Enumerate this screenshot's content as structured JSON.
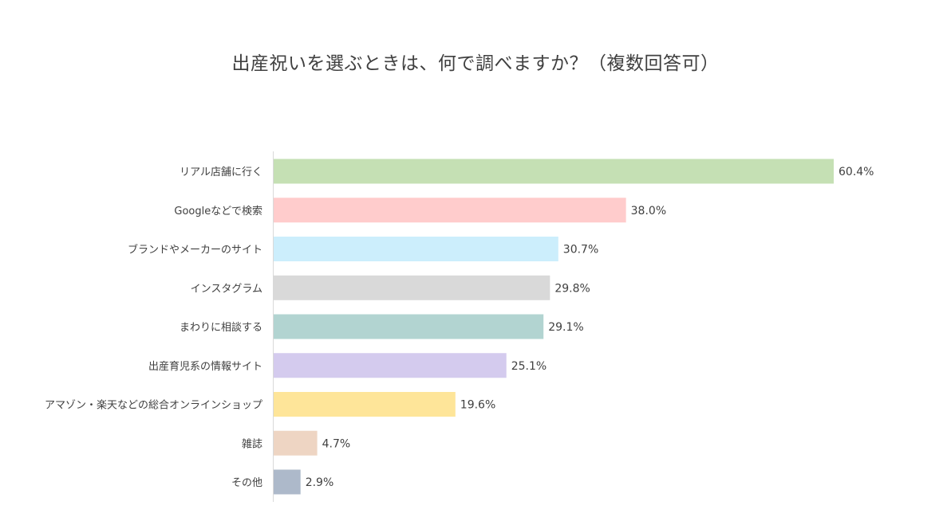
{
  "chart_data": {
    "type": "bar",
    "orientation": "horizontal",
    "title": "出産祝いを選ぶときは、何で調べますか？（複数回答可）",
    "categories": [
      "リアル店舗に行く",
      "Googleなどで検索",
      "ブランドやメーカーのサイト",
      "インスタグラム",
      "まわりに相談する",
      "出産育児系の情報サイト",
      "アマゾン・楽天などの総合オンラインショップ",
      "雑誌",
      "その他"
    ],
    "values": [
      60.4,
      38.0,
      30.7,
      29.8,
      29.1,
      25.1,
      19.6,
      4.7,
      2.9
    ],
    "value_labels": [
      "60.4%",
      "38.0%",
      "30.7%",
      "29.8%",
      "29.1%",
      "25.1%",
      "19.6%",
      "4.7%",
      "2.9%"
    ],
    "colors": [
      "#c5e0b4",
      "#ffcccc",
      "#cceefc",
      "#d9d9d9",
      "#b2d4d1",
      "#d4cbee",
      "#fee599",
      "#eed5c3",
      "#adb9ca"
    ],
    "xlim": [
      0,
      60.4
    ],
    "grid": false,
    "legend": "none"
  }
}
